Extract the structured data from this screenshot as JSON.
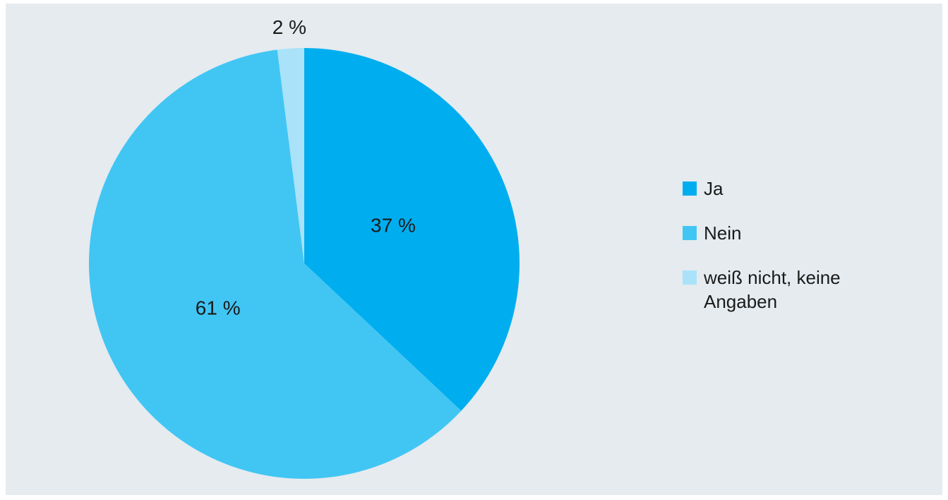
{
  "chart_data": {
    "type": "pie",
    "title": "",
    "categories": [
      "Ja",
      "Nein",
      "weiß nicht, keine Angaben"
    ],
    "values": [
      37,
      61,
      2
    ],
    "labels": [
      "37 %",
      "61 %",
      "2 %"
    ],
    "colors": [
      "#00aeef",
      "#41c6f4",
      "#a9e2f9"
    ],
    "legend": "right"
  }
}
